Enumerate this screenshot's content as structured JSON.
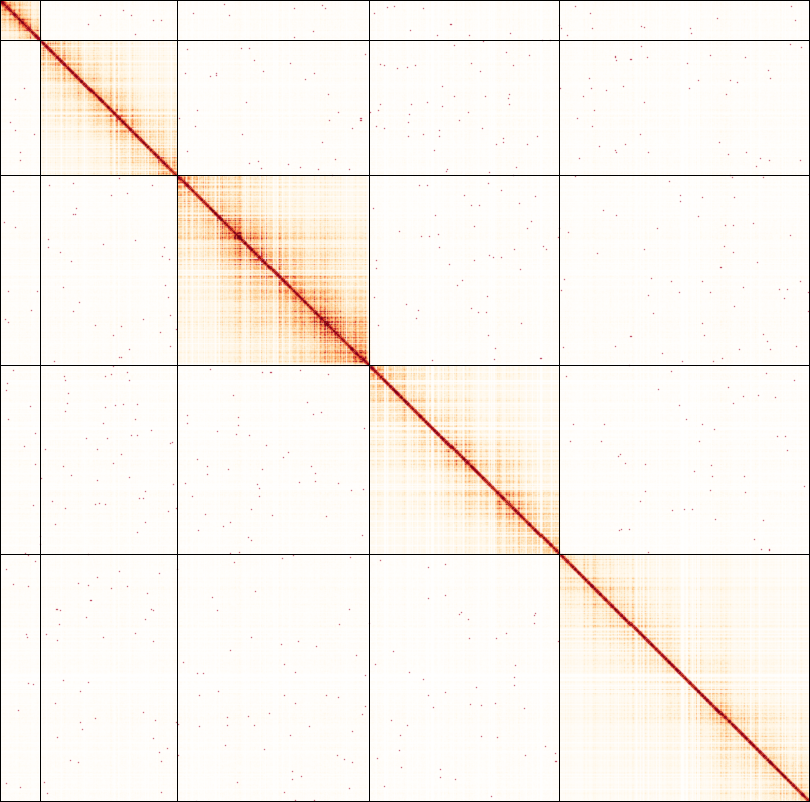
{
  "chart_data": {
    "type": "heatmap",
    "title": "",
    "xlabel": "",
    "ylabel": "",
    "block_boundaries": [
      0,
      40,
      175,
      365,
      553,
      801
    ],
    "blocks": [
      {
        "index": 0,
        "start": 0,
        "end": 40,
        "intra_intensity": 0.8
      },
      {
        "index": 1,
        "start": 40,
        "end": 175,
        "intra_intensity": 0.42
      },
      {
        "index": 2,
        "start": 175,
        "end": 365,
        "intra_intensity": 0.55
      },
      {
        "index": 3,
        "start": 365,
        "end": 553,
        "intra_intensity": 0.4
      },
      {
        "index": 4,
        "start": 553,
        "end": 801,
        "intra_intensity": 0.28
      }
    ],
    "inter_block_intensity": 0.03,
    "diagonal_intensity": 1.0,
    "colormap": [
      "#ffffff",
      "#fff3dd",
      "#fdd49e",
      "#fdae61",
      "#f46d43",
      "#d73027",
      "#a50026",
      "#67000d"
    ],
    "grid": true,
    "gridline_color": "#000000",
    "tick_labels": false,
    "legend": "none"
  }
}
